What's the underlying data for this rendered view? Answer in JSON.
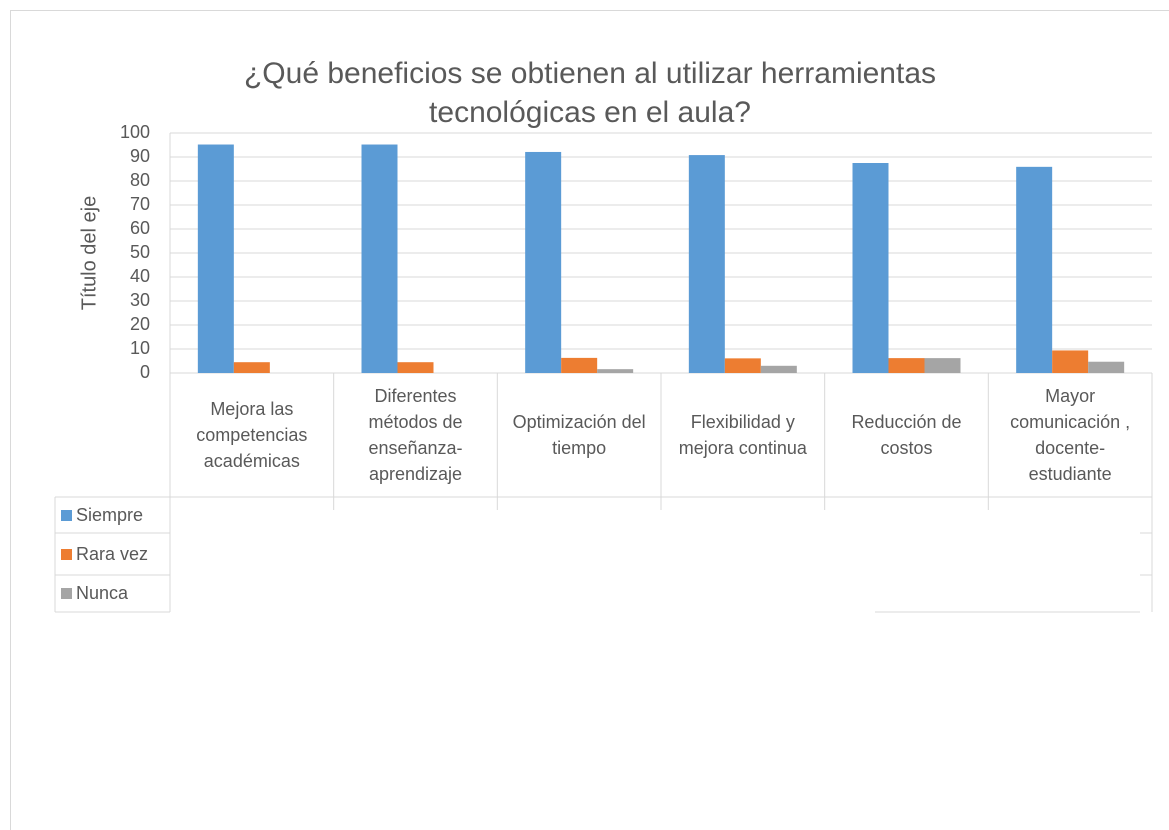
{
  "chart_data": {
    "type": "bar",
    "title": "¿Qué beneficios se obtienen al utilizar herramientas tecnológicas en el aula?",
    "y_label": "Título del eje",
    "categories": [
      "Mejora las competencias académicas",
      "Diferentes métodos de enseñanza-aprendizaje",
      "Optimización del tiempo",
      "Flexibilidad y mejora continua",
      "Reducción de costos",
      "Mayor comunicación , docente-estudiante"
    ],
    "series": [
      {
        "name": "Siempre",
        "color": "#5b9bd5",
        "values": [
          95.2,
          95.2,
          92.1,
          90.8,
          87.5,
          85.9
        ]
      },
      {
        "name": "Rara vez",
        "color": "#ed7d31",
        "values": [
          4.5,
          4.5,
          6.3,
          6.1,
          6.2,
          9.4
        ]
      },
      {
        "name": "Nunca",
        "color": "#a5a5a5",
        "values": [
          0,
          0,
          1.6,
          3,
          6.2,
          4.7
        ]
      }
    ],
    "ylim": [
      0,
      100
    ],
    "yticks": [
      0,
      10,
      20,
      30,
      40,
      50,
      60,
      70,
      80,
      90,
      100
    ],
    "grid": true
  }
}
